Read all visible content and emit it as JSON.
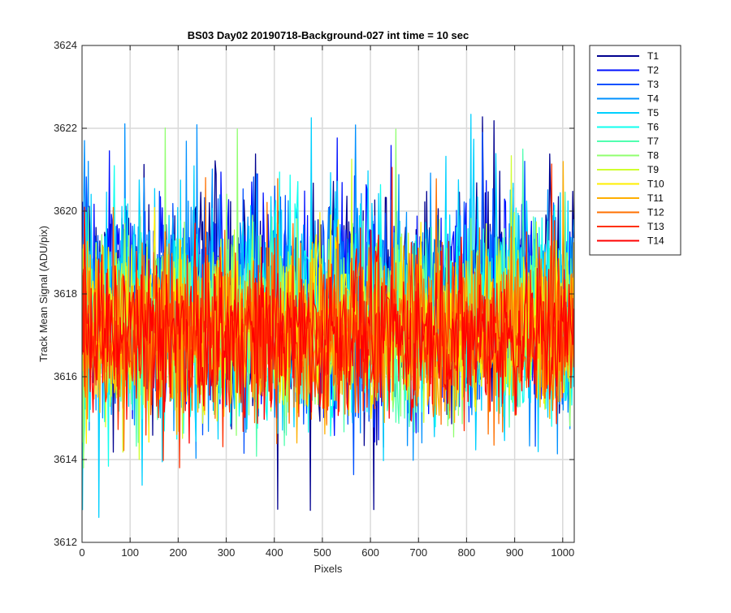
{
  "chart_data": {
    "type": "line",
    "title": "BS03 Day02 20190718-Background-027 int time = 10 sec",
    "xlabel": "Pixels",
    "ylabel": "Track Mean Signal (ADU/pix)",
    "xlim": [
      0,
      1024
    ],
    "ylim": [
      3612,
      3624
    ],
    "xticks": [
      "0",
      "100",
      "200",
      "300",
      "400",
      "500",
      "600",
      "700",
      "800",
      "900",
      "1000"
    ],
    "yticks": [
      "3612",
      "3614",
      "3616",
      "3618",
      "3620",
      "3622",
      "3624"
    ],
    "grid": true,
    "legend_position": "outside-top-right",
    "series": [
      {
        "name": "T1",
        "color": "#00008f",
        "mean": 3617.9,
        "low": 3612.7,
        "high": 3622.4
      },
      {
        "name": "T2",
        "color": "#0010ff",
        "mean": 3617.8,
        "low": 3613.5,
        "high": 3622.2
      },
      {
        "name": "T3",
        "color": "#0050ff",
        "mean": 3617.7,
        "low": 3613.6,
        "high": 3621.9
      },
      {
        "name": "T4",
        "color": "#0090ff",
        "mean": 3617.6,
        "low": 3613.0,
        "high": 3622.3
      },
      {
        "name": "T5",
        "color": "#00d0ff",
        "mean": 3617.5,
        "low": 3612.6,
        "high": 3622.4
      },
      {
        "name": "T6",
        "color": "#10ffef",
        "mean": 3617.4,
        "low": 3613.3,
        "high": 3621.8
      },
      {
        "name": "T7",
        "color": "#50ffaf",
        "mean": 3617.3,
        "low": 3613.6,
        "high": 3621.5
      },
      {
        "name": "T8",
        "color": "#90ff6f",
        "mean": 3617.3,
        "low": 3613.8,
        "high": 3622.2
      },
      {
        "name": "T9",
        "color": "#d0ff2f",
        "mean": 3617.2,
        "low": 3614.0,
        "high": 3621.4
      },
      {
        "name": "T10",
        "color": "#ffef00",
        "mean": 3617.2,
        "low": 3614.0,
        "high": 3621.3
      },
      {
        "name": "T11",
        "color": "#ffaf00",
        "mean": 3617.1,
        "low": 3614.0,
        "high": 3621.2
      },
      {
        "name": "T12",
        "color": "#ff7000",
        "mean": 3617.1,
        "low": 3613.6,
        "high": 3621.0
      },
      {
        "name": "T13",
        "color": "#ff3000",
        "mean": 3617.0,
        "low": 3613.8,
        "high": 3621.2
      },
      {
        "name": "T14",
        "color": "#ff0000",
        "mean": 3617.0,
        "low": 3614.0,
        "high": 3621.8
      }
    ]
  }
}
